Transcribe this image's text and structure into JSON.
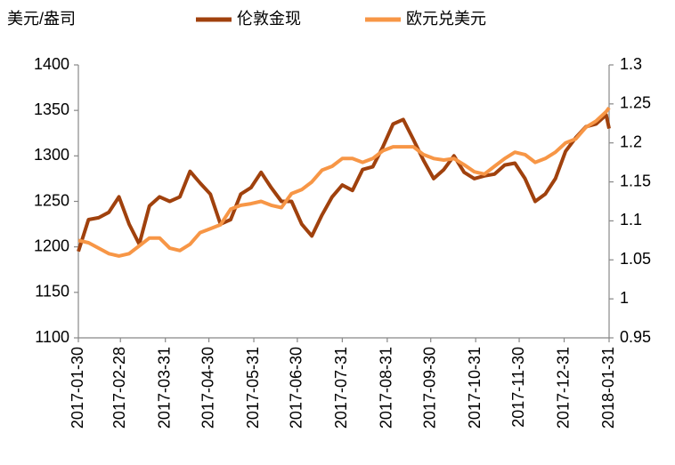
{
  "chart_data": {
    "type": "line",
    "y_label": "美元/盎司",
    "x": [
      "2017-01-30",
      "2017-02-06",
      "2017-02-13",
      "2017-02-20",
      "2017-02-27",
      "2017-03-06",
      "2017-03-13",
      "2017-03-20",
      "2017-03-27",
      "2017-04-03",
      "2017-04-10",
      "2017-04-17",
      "2017-04-24",
      "2017-05-01",
      "2017-05-08",
      "2017-05-15",
      "2017-05-22",
      "2017-05-29",
      "2017-06-05",
      "2017-06-12",
      "2017-06-19",
      "2017-06-26",
      "2017-07-03",
      "2017-07-10",
      "2017-07-17",
      "2017-07-24",
      "2017-07-31",
      "2017-08-07",
      "2017-08-14",
      "2017-08-21",
      "2017-08-28",
      "2017-09-04",
      "2017-09-11",
      "2017-09-18",
      "2017-09-25",
      "2017-10-02",
      "2017-10-09",
      "2017-10-16",
      "2017-10-23",
      "2017-10-30",
      "2017-11-06",
      "2017-11-13",
      "2017-11-20",
      "2017-11-27",
      "2017-12-04",
      "2017-12-11",
      "2017-12-18",
      "2017-12-25",
      "2018-01-01",
      "2018-01-08",
      "2018-01-15",
      "2018-01-22",
      "2018-01-29",
      "2018-01-31"
    ],
    "series": [
      {
        "name": "伦敦金现",
        "color": "#a0410d",
        "axis": "y",
        "values": [
          1195,
          1230,
          1232,
          1238,
          1255,
          1225,
          1203,
          1245,
          1255,
          1250,
          1255,
          1283,
          1270,
          1258,
          1225,
          1230,
          1258,
          1265,
          1282,
          1265,
          1250,
          1250,
          1225,
          1212,
          1235,
          1255,
          1268,
          1262,
          1285,
          1288,
          1310,
          1335,
          1340,
          1318,
          1295,
          1275,
          1285,
          1300,
          1282,
          1275,
          1278,
          1280,
          1290,
          1292,
          1275,
          1250,
          1258,
          1275,
          1305,
          1320,
          1332,
          1335,
          1345,
          1330
        ]
      },
      {
        "name": "欧元兑美元",
        "color": "#f79646",
        "axis": "y2",
        "values": [
          1.075,
          1.072,
          1.065,
          1.058,
          1.055,
          1.058,
          1.068,
          1.078,
          1.078,
          1.065,
          1.062,
          1.07,
          1.085,
          1.09,
          1.095,
          1.115,
          1.12,
          1.122,
          1.125,
          1.12,
          1.117,
          1.135,
          1.14,
          1.15,
          1.165,
          1.17,
          1.18,
          1.18,
          1.175,
          1.18,
          1.19,
          1.195,
          1.195,
          1.195,
          1.185,
          1.18,
          1.178,
          1.18,
          1.172,
          1.163,
          1.16,
          1.17,
          1.18,
          1.188,
          1.185,
          1.175,
          1.18,
          1.188,
          1.2,
          1.205,
          1.22,
          1.228,
          1.24,
          1.245
        ]
      }
    ],
    "xlim": [
      "2017-01-30",
      "2018-01-31"
    ],
    "xticks": [
      "2017-01-30",
      "2017-02-28",
      "2017-03-31",
      "2017-04-30",
      "2017-05-31",
      "2017-06-30",
      "2017-07-31",
      "2017-08-31",
      "2017-09-30",
      "2017-10-31",
      "2017-11-30",
      "2017-12-31",
      "2018-01-31"
    ],
    "ylim": [
      1100,
      1400
    ],
    "yticks": [
      1100,
      1150,
      1200,
      1250,
      1300,
      1350,
      1400
    ],
    "y2lim": [
      0.95,
      1.3
    ],
    "y2ticks": [
      0.95,
      1,
      1.05,
      1.1,
      1.15,
      1.2,
      1.25,
      1.3
    ],
    "grid": false,
    "legend": "top"
  }
}
